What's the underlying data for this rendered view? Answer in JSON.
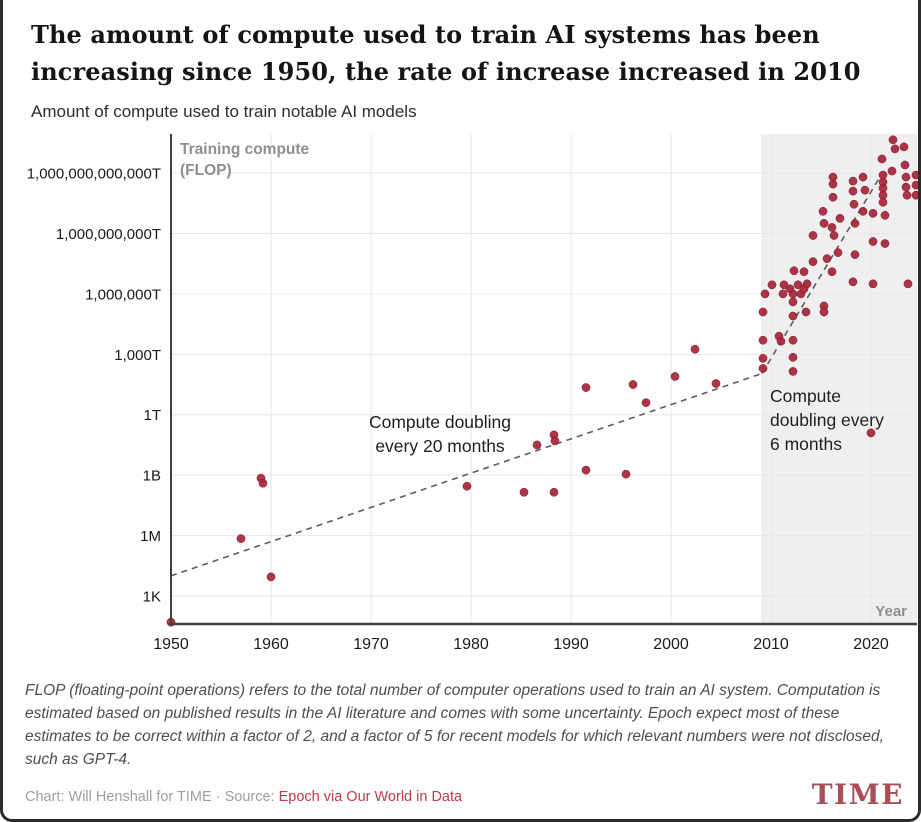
{
  "header": {
    "title_line1": "The amount of compute used to train AI systems has been",
    "title_line2": "increasing since 1950, the rate of increase increased in 2010",
    "subtitle": "Amount of compute used to train notable AI models"
  },
  "chart_data": {
    "type": "scatter",
    "title": "Amount of compute used to train notable AI models",
    "xlabel": "Year",
    "ylabel_lines": [
      "Training compute",
      "(FLOP)"
    ],
    "x_ticks": [
      1950,
      1960,
      1970,
      1980,
      1990,
      2000,
      2010,
      2020
    ],
    "xlim": [
      1950,
      2024.6
    ],
    "ylim_log10_flop": [
      1.6,
      25.9
    ],
    "grid": true,
    "legend_position": "none",
    "y_ticks": [
      {
        "label": "1,000,000,000,000T",
        "log10_flop": 24
      },
      {
        "label": "1,000,000,000T",
        "log10_flop": 21
      },
      {
        "label": "1,000,000T",
        "log10_flop": 18
      },
      {
        "label": "1,000T",
        "log10_flop": 15
      },
      {
        "label": "1T",
        "log10_flop": 12
      },
      {
        "label": "1B",
        "log10_flop": 9
      },
      {
        "label": "1M",
        "log10_flop": 6
      },
      {
        "label": "1K",
        "log10_flop": 3
      }
    ],
    "highlight_band": {
      "from_year": 2009,
      "to_year": 2024.6
    },
    "trend_lines": [
      {
        "name": "Compute doubling every 20 months",
        "points_year_log10": [
          [
            1950,
            4.0
          ],
          [
            2009.1,
            14.05
          ]
        ]
      },
      {
        "name": "Compute doubling every 6 months",
        "points_year_log10": [
          [
            2009.1,
            14.05
          ],
          [
            2021.0,
            23.9
          ]
        ]
      }
    ],
    "annotations": [
      {
        "lines": [
          "Compute doubling",
          "every 20 months"
        ],
        "anchor": "middle",
        "year": 1976.9,
        "log10_flop": 11.34
      },
      {
        "lines": [
          "Compute",
          "doubling every",
          "6 months"
        ],
        "anchor": "start",
        "year": 2009.9,
        "log10_flop": 12.63
      }
    ],
    "points_year_log10flop": [
      [
        1950.0,
        1.7
      ],
      [
        1957.0,
        5.85
      ],
      [
        1959.0,
        8.85
      ],
      [
        1959.2,
        8.6
      ],
      [
        1960.0,
        3.95
      ],
      [
        1979.6,
        8.45
      ],
      [
        1985.3,
        8.15
      ],
      [
        1986.6,
        10.5
      ],
      [
        1988.3,
        11.0
      ],
      [
        1988.4,
        10.7
      ],
      [
        1988.3,
        8.15
      ],
      [
        1991.5,
        13.35
      ],
      [
        1991.5,
        9.25
      ],
      [
        1995.5,
        9.05
      ],
      [
        1996.2,
        13.5
      ],
      [
        1997.5,
        12.6
      ],
      [
        2000.4,
        13.9
      ],
      [
        2002.4,
        15.25
      ],
      [
        2004.5,
        13.55
      ],
      [
        2009.2,
        15.7
      ],
      [
        2009.2,
        14.8
      ],
      [
        2009.2,
        14.3
      ],
      [
        2009.2,
        17.1
      ],
      [
        2009.4,
        18.0
      ],
      [
        2010.1,
        18.45
      ],
      [
        2010.8,
        15.9
      ],
      [
        2011.0,
        15.65
      ],
      [
        2011.2,
        18.0
      ],
      [
        2011.3,
        18.45
      ],
      [
        2011.9,
        18.25
      ],
      [
        2012.2,
        15.7
      ],
      [
        2012.2,
        14.85
      ],
      [
        2012.2,
        14.15
      ],
      [
        2012.2,
        16.9
      ],
      [
        2012.2,
        17.6
      ],
      [
        2012.2,
        18.0
      ],
      [
        2012.3,
        19.15
      ],
      [
        2012.7,
        18.45
      ],
      [
        2013.0,
        18.0
      ],
      [
        2013.3,
        18.25
      ],
      [
        2013.3,
        19.1
      ],
      [
        2013.5,
        17.1
      ],
      [
        2013.6,
        18.5
      ],
      [
        2014.2,
        19.6
      ],
      [
        2014.2,
        20.9
      ],
      [
        2015.2,
        22.1
      ],
      [
        2015.3,
        21.5
      ],
      [
        2015.3,
        17.4
      ],
      [
        2015.3,
        17.1
      ],
      [
        2015.6,
        19.75
      ],
      [
        2016.1,
        21.3
      ],
      [
        2016.1,
        19.1
      ],
      [
        2016.2,
        23.8
      ],
      [
        2016.2,
        23.45
      ],
      [
        2016.2,
        22.8
      ],
      [
        2016.3,
        20.9
      ],
      [
        2016.7,
        20.05
      ],
      [
        2016.9,
        21.75
      ],
      [
        2018.2,
        23.6
      ],
      [
        2018.2,
        23.1
      ],
      [
        2018.2,
        18.6
      ],
      [
        2018.3,
        22.45
      ],
      [
        2018.4,
        21.5
      ],
      [
        2018.4,
        19.95
      ],
      [
        2019.2,
        23.8
      ],
      [
        2019.2,
        22.1
      ],
      [
        2019.4,
        23.15
      ],
      [
        2020.0,
        11.1
      ],
      [
        2020.2,
        22.0
      ],
      [
        2020.2,
        20.6
      ],
      [
        2020.2,
        18.5
      ],
      [
        2021.1,
        24.7
      ],
      [
        2021.2,
        23.9
      ],
      [
        2021.2,
        23.55
      ],
      [
        2021.2,
        23.25
      ],
      [
        2021.2,
        22.9
      ],
      [
        2021.2,
        22.55
      ],
      [
        2021.4,
        21.9
      ],
      [
        2021.4,
        20.5
      ],
      [
        2022.1,
        24.1
      ],
      [
        2022.2,
        25.65
      ],
      [
        2022.4,
        25.2
      ],
      [
        2023.4,
        24.4
      ],
      [
        2023.5,
        23.8
      ],
      [
        2023.5,
        23.3
      ],
      [
        2023.6,
        22.9
      ],
      [
        2023.3,
        25.3
      ],
      [
        2023.7,
        18.5
      ],
      [
        2024.5,
        23.9
      ],
      [
        2024.5,
        23.4
      ],
      [
        2024.5,
        22.9
      ]
    ]
  },
  "footer": {
    "note": "FLOP (floating-point operations) refers to the total number of computer operations used to train an AI system. Computation is estimated based on published results in the AI literature and comes with some uncertainty. Epoch expect most of these estimates to be correct within a factor of 2, and a factor of 5 for recent models for which relevant numbers were not disclosed, such as GPT-4.",
    "credit_prefix": "Chart: Will Henshall for TIME",
    "credit_separator": "·",
    "credit_source_label": "Source:",
    "credit_source": "Epoch via Our World in Data",
    "logo": "TIME"
  },
  "colors": {
    "dot_red": "#a62639",
    "dot_stroke": "#7e1d2c",
    "source_red": "#c03a4b",
    "logo_red": "#a84e59",
    "band_gray": "#efefef",
    "grid_gray": "#e7e7e7",
    "axis_gray": "#3f3f3f",
    "trend_gray": "#5c5c5c",
    "tick_text": "#1b1b1b",
    "muted_text": "#8f8f8f"
  }
}
